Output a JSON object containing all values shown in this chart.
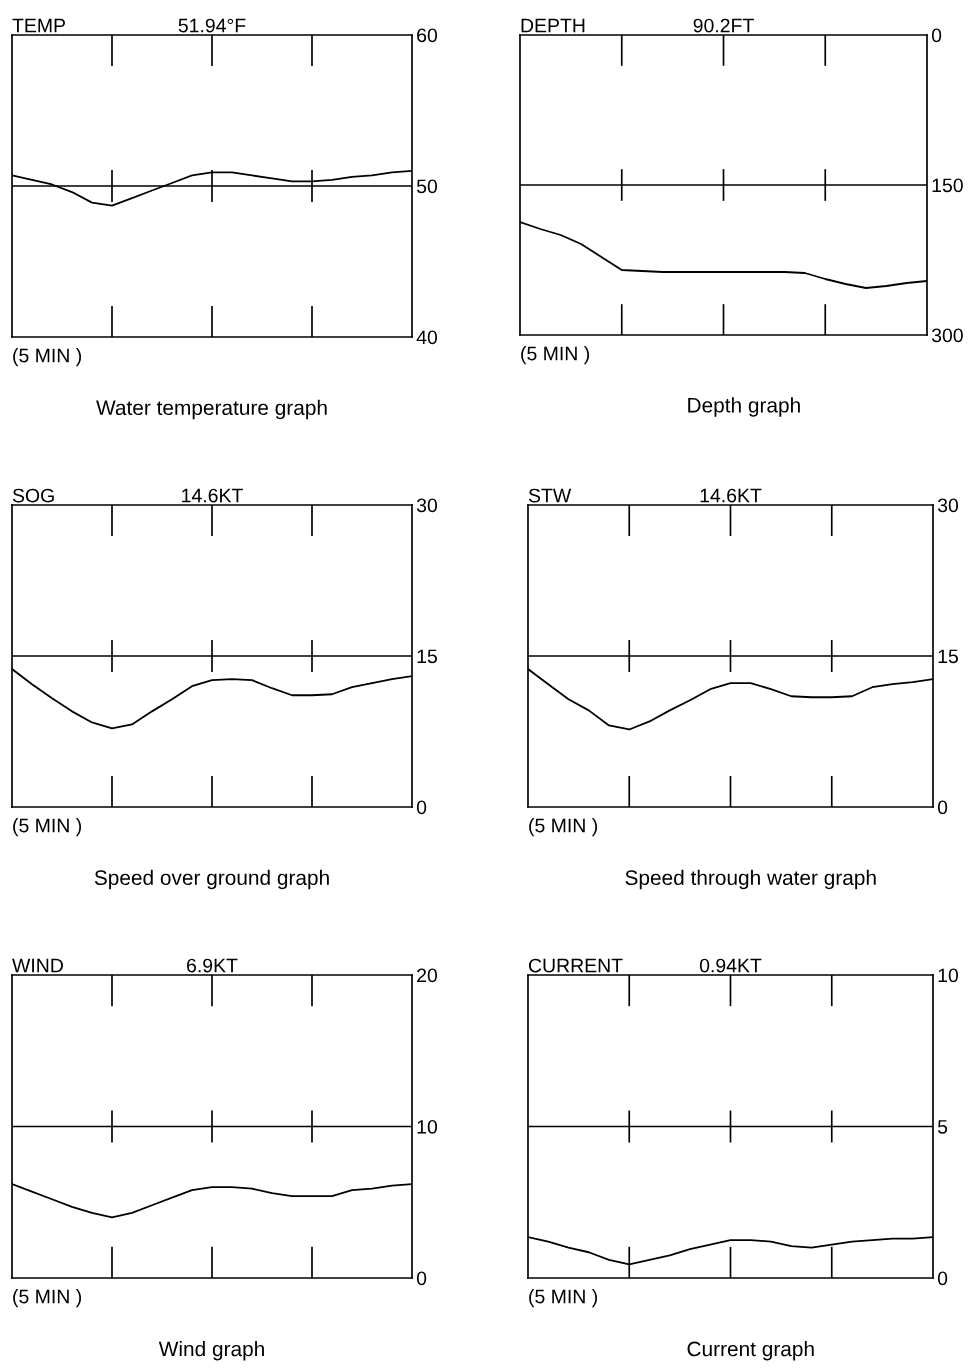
{
  "chart_data": [
    {
      "type": "line",
      "title": "TEMP",
      "subtitle": "51.94°F",
      "xlabel": "(5 MIN )",
      "annotations": [
        "Water temperature graph"
      ],
      "categories": [
        null,
        null,
        null,
        null,
        null,
        null,
        null,
        null,
        null,
        null,
        null,
        null,
        null,
        null,
        null,
        null,
        null,
        null,
        null,
        null,
        null
      ],
      "series": [
        {
          "color": "#000000",
          "values": [
            50.7,
            50.4,
            50.1,
            49.6,
            48.9,
            48.7,
            49.2,
            49.7,
            50.2,
            50.7,
            50.9,
            50.9,
            50.7,
            50.5,
            50.3,
            50.3,
            50.4,
            50.6,
            50.7,
            50.9,
            51.0
          ]
        }
      ],
      "ylim": [
        40,
        60
      ],
      "yticks": [
        40,
        50,
        60
      ],
      "tick_labels": "y",
      "ref_lines": [
        {
          "axis": "y",
          "value": 50,
          "color": "#000000"
        }
      ]
    },
    {
      "type": "line",
      "title": "DEPTH",
      "subtitle": "90.2FT",
      "xlabel": "(5 MIN )",
      "annotations": [
        "Depth graph"
      ],
      "categories": [
        null,
        null,
        null,
        null,
        null,
        null,
        null,
        null,
        null,
        null,
        null,
        null,
        null,
        null,
        null,
        null,
        null,
        null,
        null,
        null,
        null
      ],
      "series": [
        {
          "color": "#000000",
          "values": [
            187,
            194,
            200,
            209,
            222,
            235,
            236,
            237,
            237,
            237,
            237,
            237,
            237,
            237,
            238,
            244,
            249,
            253,
            251,
            248,
            246
          ]
        }
      ],
      "ylim": [
        300,
        0
      ],
      "yticks": [
        0,
        150,
        300
      ],
      "tick_labels": "y",
      "ref_lines": [
        {
          "axis": "y",
          "value": 150,
          "color": "#000000"
        }
      ]
    },
    {
      "type": "line",
      "title": "SOG",
      "subtitle": "14.6KT",
      "xlabel": "(5 MIN )",
      "annotations": [
        "Speed over ground graph"
      ],
      "categories": [
        null,
        null,
        null,
        null,
        null,
        null,
        null,
        null,
        null,
        null,
        null,
        null,
        null,
        null,
        null,
        null,
        null,
        null,
        null,
        null,
        null
      ],
      "series": [
        {
          "color": "#000000",
          "values": [
            13.7,
            12.2,
            10.8,
            9.5,
            8.4,
            7.8,
            8.2,
            9.5,
            10.7,
            12.0,
            12.6,
            12.7,
            12.6,
            11.8,
            11.1,
            11.1,
            11.2,
            11.9,
            12.3,
            12.7,
            13.0
          ]
        }
      ],
      "ylim": [
        0,
        30
      ],
      "yticks": [
        0,
        15,
        30
      ],
      "tick_labels": "y",
      "ref_lines": [
        {
          "axis": "y",
          "value": 15,
          "color": "#000000"
        }
      ]
    },
    {
      "type": "line",
      "title": "STW",
      "subtitle": "14.6KT",
      "xlabel": "(5 MIN )",
      "annotations": [
        "Speed through water graph"
      ],
      "categories": [
        null,
        null,
        null,
        null,
        null,
        null,
        null,
        null,
        null,
        null,
        null,
        null,
        null,
        null,
        null,
        null,
        null,
        null,
        null,
        null,
        null
      ],
      "series": [
        {
          "color": "#000000",
          "values": [
            13.7,
            12.2,
            10.7,
            9.6,
            8.1,
            7.7,
            8.5,
            9.6,
            10.6,
            11.7,
            12.3,
            12.3,
            11.7,
            11.0,
            10.9,
            10.9,
            11.0,
            11.9,
            12.2,
            12.4,
            12.7
          ]
        }
      ],
      "ylim": [
        0,
        30
      ],
      "yticks": [
        0,
        15,
        30
      ],
      "tick_labels": "y",
      "ref_lines": [
        {
          "axis": "y",
          "value": 15,
          "color": "#000000"
        }
      ]
    },
    {
      "type": "line",
      "title": "WIND",
      "subtitle": "6.9KT",
      "xlabel": "(5 MIN )",
      "annotations": [
        "Wind graph"
      ],
      "categories": [
        null,
        null,
        null,
        null,
        null,
        null,
        null,
        null,
        null,
        null,
        null,
        null,
        null,
        null,
        null,
        null,
        null,
        null,
        null,
        null,
        null
      ],
      "series": [
        {
          "color": "#000000",
          "values": [
            6.2,
            5.7,
            5.2,
            4.7,
            4.3,
            4.0,
            4.3,
            4.8,
            5.3,
            5.8,
            6.0,
            6.0,
            5.9,
            5.6,
            5.4,
            5.4,
            5.4,
            5.8,
            5.9,
            6.1,
            6.2
          ]
        }
      ],
      "ylim": [
        0,
        20
      ],
      "yticks": [
        0,
        10,
        20
      ],
      "tick_labels": "y",
      "ref_lines": [
        {
          "axis": "y",
          "value": 10,
          "color": "#000000"
        }
      ]
    },
    {
      "type": "line",
      "title": "CURRENT",
      "subtitle": "0.94KT",
      "xlabel": "(5 MIN )",
      "annotations": [
        "Current graph"
      ],
      "categories": [
        null,
        null,
        null,
        null,
        null,
        null,
        null,
        null,
        null,
        null,
        null,
        null,
        null,
        null,
        null,
        null,
        null,
        null,
        null,
        null,
        null
      ],
      "series": [
        {
          "color": "#000000",
          "values": [
            1.35,
            1.2,
            1.0,
            0.85,
            0.6,
            0.45,
            0.6,
            0.75,
            0.95,
            1.1,
            1.25,
            1.25,
            1.2,
            1.05,
            1.0,
            1.1,
            1.2,
            1.25,
            1.3,
            1.3,
            1.35
          ]
        }
      ],
      "ylim": [
        0,
        10
      ],
      "yticks": [
        0,
        5,
        10
      ],
      "tick_labels": "y",
      "ref_lines": [
        {
          "axis": "y",
          "value": 5,
          "color": "#000000"
        }
      ]
    }
  ]
}
